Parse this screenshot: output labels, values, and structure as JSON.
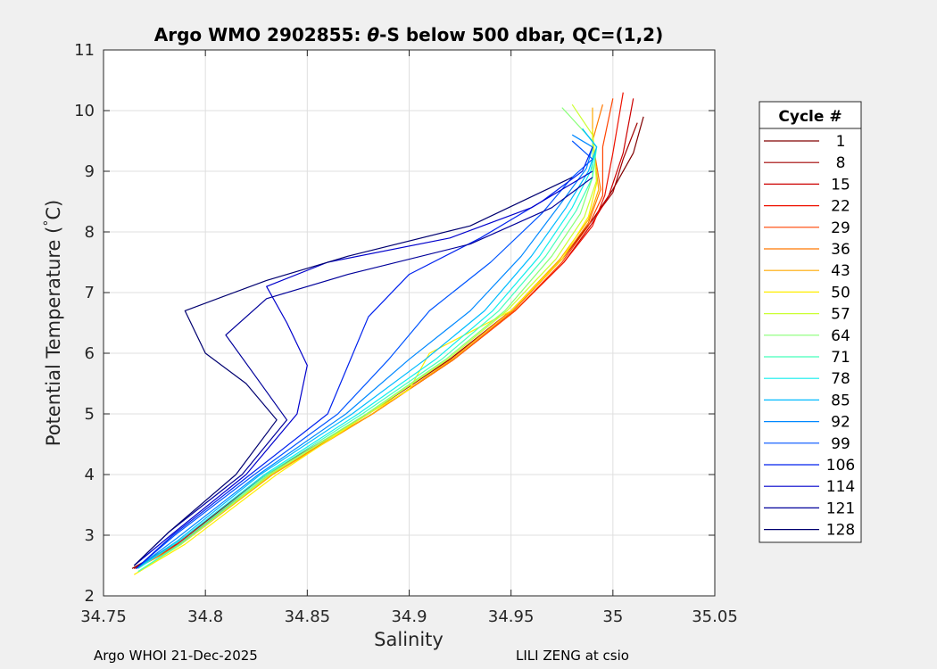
{
  "chart_data": {
    "type": "line",
    "title_prefix": "Argo WMO 2902855: ",
    "title_symbol": "θ",
    "title_suffix": "-S below 500 dbar,  QC=(1,2)",
    "xlabel": "Salinity",
    "ylabel_text": "Potential Temperature (",
    "ylabel_degree": "°",
    "ylabel_unit": "C)",
    "xlim": [
      34.75,
      35.05
    ],
    "ylim": [
      2,
      11
    ],
    "xticks": [
      34.75,
      34.8,
      34.85,
      34.9,
      34.95,
      35,
      35.05
    ],
    "xtick_labels": [
      "34.75",
      "34.8",
      "34.85",
      "34.9",
      "34.95",
      "35",
      "35.05"
    ],
    "yticks": [
      2,
      3,
      4,
      5,
      6,
      7,
      8,
      9,
      10,
      11
    ],
    "ytick_labels": [
      "2",
      "3",
      "4",
      "5",
      "6",
      "7",
      "8",
      "9",
      "10",
      "11"
    ],
    "grid": true,
    "legend": {
      "title": "Cycle #",
      "position": "outside-right",
      "entries": [
        {
          "label": "1",
          "color": "#800000"
        },
        {
          "label": "8",
          "color": "#a00000"
        },
        {
          "label": "15",
          "color": "#cc0000"
        },
        {
          "label": "22",
          "color": "#ee1100"
        },
        {
          "label": "29",
          "color": "#ff4400"
        },
        {
          "label": "36",
          "color": "#ff7700"
        },
        {
          "label": "43",
          "color": "#ffaa00"
        },
        {
          "label": "50",
          "color": "#ffee00"
        },
        {
          "label": "57",
          "color": "#ccff33"
        },
        {
          "label": "64",
          "color": "#88ff77"
        },
        {
          "label": "71",
          "color": "#44ffbb"
        },
        {
          "label": "78",
          "color": "#11eeee"
        },
        {
          "label": "85",
          "color": "#00bbff"
        },
        {
          "label": "92",
          "color": "#0088ff"
        },
        {
          "label": "99",
          "color": "#0055ff"
        },
        {
          "label": "106",
          "color": "#0022ee"
        },
        {
          "label": "114",
          "color": "#0000cc"
        },
        {
          "label": "121",
          "color": "#00009a"
        },
        {
          "label": "128",
          "color": "#000070"
        }
      ]
    },
    "series": [
      {
        "name": "1",
        "color": "#800000",
        "x": [
          34.764,
          34.785,
          34.83,
          34.88,
          34.92,
          34.95,
          34.975,
          34.99,
          35.0,
          35.01,
          35.015
        ],
        "y": [
          2.45,
          2.85,
          4.0,
          5.0,
          5.9,
          6.7,
          7.55,
          8.2,
          8.7,
          9.3,
          9.9
        ]
      },
      {
        "name": "8",
        "color": "#a00000",
        "x": [
          34.765,
          34.786,
          34.83,
          34.88,
          34.92,
          34.95,
          34.975,
          34.99,
          35.0,
          35.005,
          35.012
        ],
        "y": [
          2.45,
          2.85,
          4.0,
          5.0,
          5.9,
          6.7,
          7.55,
          8.2,
          8.65,
          9.2,
          9.8
        ]
      },
      {
        "name": "15",
        "color": "#cc0000",
        "x": [
          34.765,
          34.787,
          34.832,
          34.882,
          34.922,
          34.952,
          34.976,
          34.99,
          34.998,
          35.005,
          35.01
        ],
        "y": [
          2.45,
          2.85,
          4.0,
          5.0,
          5.9,
          6.7,
          7.5,
          8.15,
          8.6,
          9.3,
          10.2
        ]
      },
      {
        "name": "22",
        "color": "#ee1100",
        "x": [
          34.766,
          34.786,
          34.832,
          34.882,
          34.922,
          34.952,
          34.976,
          34.99,
          34.996,
          35.0,
          35.005
        ],
        "y": [
          2.45,
          2.85,
          4.0,
          5.0,
          5.9,
          6.7,
          7.5,
          8.1,
          8.6,
          9.3,
          10.3
        ]
      },
      {
        "name": "29",
        "color": "#ff4400",
        "x": [
          34.766,
          34.787,
          34.832,
          34.882,
          34.922,
          34.952,
          34.975,
          34.988,
          34.995,
          34.995,
          35.0
        ],
        "y": [
          2.45,
          2.85,
          4.0,
          5.0,
          5.9,
          6.7,
          7.5,
          8.1,
          8.6,
          9.4,
          10.2
        ]
      },
      {
        "name": "36",
        "color": "#ff7700",
        "x": [
          34.766,
          34.788,
          34.833,
          34.882,
          34.922,
          34.951,
          34.975,
          34.988,
          34.994,
          34.99,
          34.995
        ],
        "y": [
          2.45,
          2.85,
          4.0,
          5.0,
          5.9,
          6.7,
          7.55,
          8.15,
          8.7,
          9.5,
          10.1
        ]
      },
      {
        "name": "43",
        "color": "#ffaa00",
        "x": [
          34.767,
          34.788,
          34.833,
          34.882,
          34.921,
          34.95,
          34.974,
          34.988,
          34.993,
          34.99,
          34.99
        ],
        "y": [
          2.4,
          2.85,
          4.0,
          5.0,
          5.9,
          6.7,
          7.55,
          8.2,
          8.7,
          9.5,
          10.05
        ]
      },
      {
        "name": "50",
        "color": "#ffee00",
        "x": [
          34.765,
          34.79,
          34.835,
          34.88,
          34.9,
          34.91,
          34.95,
          34.975,
          34.988,
          34.992,
          34.99
        ],
        "y": [
          2.35,
          2.85,
          4.0,
          5.0,
          5.4,
          6.0,
          6.7,
          7.55,
          8.25,
          8.8,
          9.7
        ]
      },
      {
        "name": "57",
        "color": "#ccff33",
        "x": [
          34.767,
          34.788,
          34.832,
          34.88,
          34.919,
          34.948,
          34.972,
          34.986,
          34.992,
          34.99,
          34.98
        ],
        "y": [
          2.4,
          2.85,
          4.0,
          5.0,
          5.9,
          6.7,
          7.55,
          8.25,
          8.85,
          9.6,
          10.1
        ]
      },
      {
        "name": "64",
        "color": "#88ff77",
        "x": [
          34.767,
          34.788,
          34.831,
          34.879,
          34.918,
          34.947,
          34.97,
          34.984,
          34.99,
          34.99,
          34.975
        ],
        "y": [
          2.4,
          2.85,
          4.0,
          5.0,
          5.9,
          6.7,
          7.6,
          8.3,
          8.9,
          9.5,
          10.05
        ]
      },
      {
        "name": "71",
        "color": "#44ffbb",
        "x": [
          34.767,
          34.787,
          34.83,
          34.877,
          34.916,
          34.944,
          34.967,
          34.982,
          34.99,
          34.992,
          34.985
        ],
        "y": [
          2.4,
          2.85,
          4.0,
          5.0,
          5.9,
          6.7,
          7.6,
          8.35,
          8.9,
          9.4,
          9.7
        ]
      },
      {
        "name": "78",
        "color": "#11eeee",
        "x": [
          34.767,
          34.787,
          34.829,
          34.875,
          34.913,
          34.941,
          34.964,
          34.98,
          34.989,
          34.992,
          34.985
        ],
        "y": [
          2.45,
          2.9,
          4.0,
          5.0,
          5.9,
          6.7,
          7.6,
          8.4,
          9.0,
          9.4,
          9.7
        ]
      },
      {
        "name": "85",
        "color": "#00bbff",
        "x": [
          34.766,
          34.786,
          34.827,
          34.872,
          34.908,
          34.937,
          34.96,
          34.977,
          34.988,
          34.992,
          34.985
        ],
        "y": [
          2.45,
          2.9,
          4.0,
          5.0,
          5.9,
          6.7,
          7.6,
          8.4,
          9.0,
          9.4,
          9.7
        ]
      },
      {
        "name": "92",
        "color": "#0088ff",
        "x": [
          34.766,
          34.786,
          34.826,
          34.869,
          34.9,
          34.93,
          34.955,
          34.974,
          34.987,
          34.99,
          34.98
        ],
        "y": [
          2.45,
          2.95,
          4.0,
          5.0,
          5.9,
          6.7,
          7.6,
          8.45,
          9.05,
          9.4,
          9.6
        ]
      },
      {
        "name": "99",
        "color": "#0055ff",
        "x": [
          34.766,
          34.785,
          34.824,
          34.865,
          34.89,
          34.91,
          34.94,
          34.965,
          34.98,
          34.99,
          34.98
        ],
        "y": [
          2.45,
          3.0,
          4.0,
          5.0,
          5.9,
          6.7,
          7.5,
          8.3,
          8.9,
          9.2,
          9.5
        ]
      },
      {
        "name": "106",
        "color": "#0022ee",
        "x": [
          34.766,
          34.784,
          34.822,
          34.86,
          34.87,
          34.88,
          34.9,
          34.935,
          34.965,
          34.985,
          34.99
        ],
        "y": [
          2.45,
          3.0,
          4.0,
          5.0,
          5.8,
          6.6,
          7.3,
          7.9,
          8.5,
          9.0,
          9.4
        ]
      },
      {
        "name": "114",
        "color": "#0000cc",
        "x": [
          34.765,
          34.783,
          34.82,
          34.845,
          34.85,
          34.84,
          34.83,
          34.86,
          34.92,
          34.96,
          34.99
        ],
        "y": [
          2.5,
          3.0,
          4.0,
          5.0,
          5.8,
          6.5,
          7.1,
          7.5,
          7.9,
          8.4,
          9.0
        ]
      },
      {
        "name": "121",
        "color": "#00009a",
        "x": [
          34.765,
          34.782,
          34.818,
          34.84,
          34.825,
          34.81,
          34.83,
          34.87,
          34.93,
          34.97,
          34.99
        ],
        "y": [
          2.5,
          3.05,
          4.0,
          4.9,
          5.6,
          6.3,
          6.9,
          7.3,
          7.8,
          8.4,
          8.9
        ]
      },
      {
        "name": "128",
        "color": "#000070",
        "x": [
          34.765,
          34.782,
          34.815,
          34.835,
          34.82,
          34.8,
          34.79,
          34.83,
          34.87,
          34.93,
          34.98
        ],
        "y": [
          2.5,
          3.05,
          4.0,
          4.9,
          5.5,
          6.0,
          6.7,
          7.2,
          7.6,
          8.1,
          8.9
        ]
      }
    ]
  },
  "footer": {
    "left": "Argo WHOI 21-Dec-2025",
    "right": "LILI ZENG at csio"
  }
}
